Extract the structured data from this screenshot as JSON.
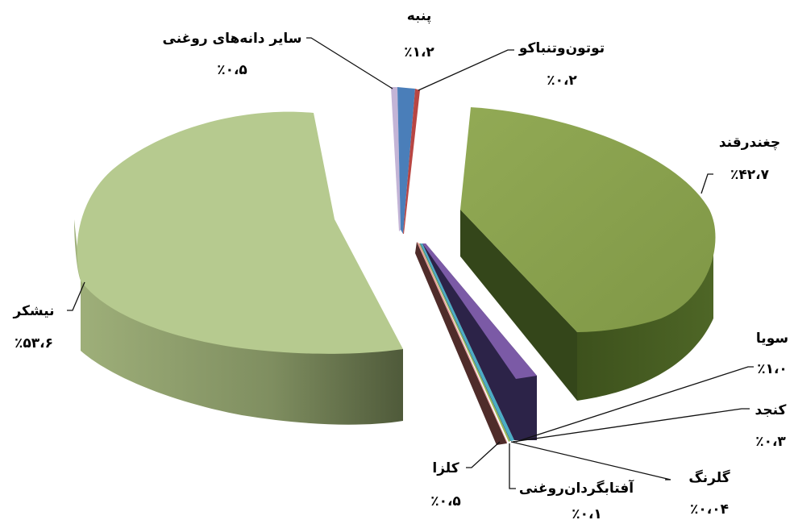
{
  "chart_data": {
    "type": "pie",
    "style": "3d-exploded",
    "slices": [
      {
        "label": "نیشکر",
        "value_text": "٪۵۳،۶",
        "value": 53.6,
        "color": "#b6ca8f"
      },
      {
        "label": "چغندرقند",
        "value_text": "٪۴۲،۷",
        "value": 42.7,
        "color": "#8aa24e"
      },
      {
        "label": "پنبه",
        "value_text": "٪۱،۲",
        "value": 1.2,
        "color": "#4a7eb9"
      },
      {
        "label": "توتون‌وتنباکو",
        "value_text": "٪۰،۲",
        "value": 0.2,
        "color": "#b84643"
      },
      {
        "label": "سایر دانه‌های روغنی",
        "value_text": "٪۰،۵",
        "value": 0.5,
        "color": "#c3b4d6"
      },
      {
        "label": "سویا",
        "value_text": "٪۱،۰",
        "value": 1.0,
        "color": "#7b5aa6"
      },
      {
        "label": "کنجد",
        "value_text": "٪۰،۳",
        "value": 0.3,
        "color": "#4aaec6"
      },
      {
        "label": "گلرنگ",
        "value_text": "٪۰،۰۴",
        "value": 0.04,
        "color": "#2e6f8c"
      },
      {
        "label": "آفتابگردان‌روغنی",
        "value_text": "٪۰،۱",
        "value": 0.1,
        "color": "#9bb959"
      },
      {
        "label": "کلزا",
        "value_text": "٪۰،۵",
        "value": 0.5,
        "color": "#e59a97"
      }
    ],
    "legend": "none",
    "title": ""
  }
}
